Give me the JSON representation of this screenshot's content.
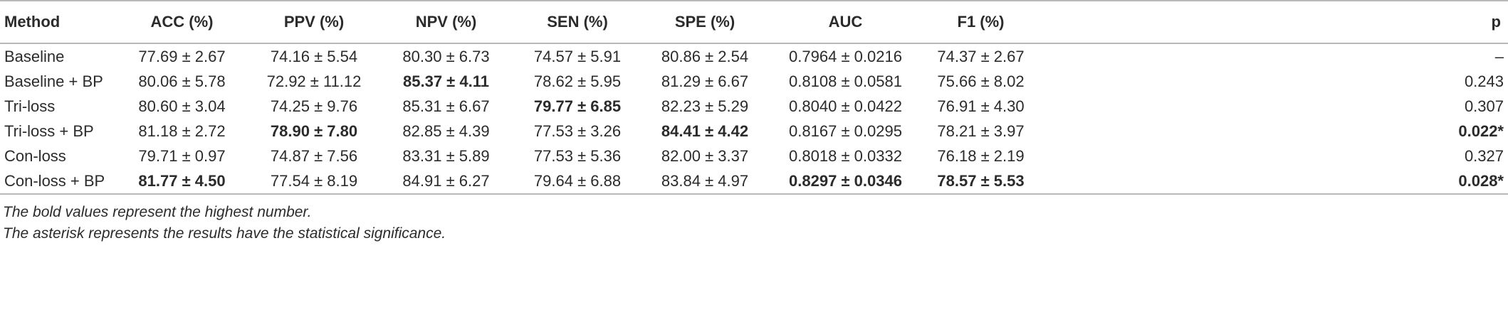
{
  "table": {
    "headers": [
      "Method",
      "ACC (%)",
      "PPV (%)",
      "NPV (%)",
      "SEN (%)",
      "SPE (%)",
      "AUC",
      "F1 (%)",
      "p"
    ],
    "rows": [
      [
        "Baseline",
        "77.69 ± 2.67",
        "74.16 ± 5.54",
        "80.30 ± 6.73",
        "74.57 ± 5.91",
        "80.86 ± 2.54",
        "0.7964 ± 0.0216",
        "74.37 ± 2.67",
        "–"
      ],
      [
        "Baseline + BP",
        "80.06 ± 5.78",
        "72.92 ± 11.12",
        {
          "text": "85.37 ± 4.11",
          "bold": true
        },
        "78.62 ± 5.95",
        "81.29 ± 6.67",
        "0.8108 ± 0.0581",
        "75.66 ± 8.02",
        "0.243"
      ],
      [
        "Tri-loss",
        "80.60 ± 3.04",
        "74.25 ± 9.76",
        "85.31 ± 6.67",
        {
          "text": "79.77 ± 6.85",
          "bold": true
        },
        "82.23 ± 5.29",
        "0.8040 ± 0.0422",
        "76.91 ± 4.30",
        "0.307"
      ],
      [
        "Tri-loss + BP",
        "81.18 ± 2.72",
        {
          "text": "78.90 ± 7.80",
          "bold": true
        },
        "82.85 ± 4.39",
        "77.53 ± 3.26",
        {
          "text": "84.41 ± 4.42",
          "bold": true
        },
        "0.8167 ± 0.0295",
        "78.21 ± 3.97",
        {
          "text": "0.022*",
          "bold": true
        }
      ],
      [
        "Con-loss",
        "79.71 ± 0.97",
        "74.87 ± 7.56",
        "83.31 ± 5.89",
        "77.53 ± 5.36",
        "82.00 ± 3.37",
        "0.8018 ± 0.0332",
        "76.18 ± 2.19",
        "0.327"
      ],
      [
        "Con-loss + BP",
        {
          "text": "81.77 ± 4.50",
          "bold": true
        },
        "77.54 ± 8.19",
        "84.91 ± 6.27",
        "79.64 ± 6.88",
        "83.84 ± 4.97",
        {
          "text": "0.8297 ± 0.0346",
          "bold": true
        },
        {
          "text": "78.57 ± 5.53",
          "bold": true
        },
        {
          "text": "0.028*",
          "bold": true
        }
      ]
    ],
    "notes": [
      "The bold values represent the highest number.",
      "The asterisk represents the results have the statistical significance."
    ]
  }
}
